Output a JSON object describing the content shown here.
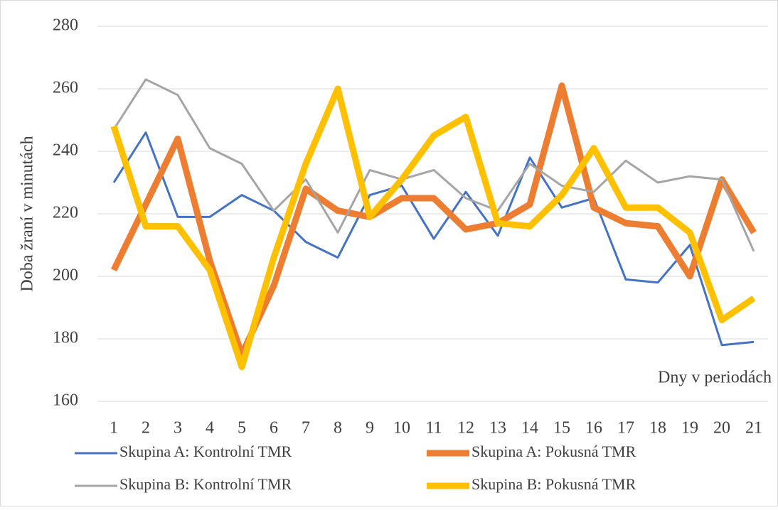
{
  "chart_data": {
    "type": "line",
    "y_label": "Doba žraní v minutách",
    "x_label": "Dny v periodách",
    "categories": [
      "1",
      "2",
      "3",
      "4",
      "5",
      "6",
      "7",
      "8",
      "9",
      "10",
      "11",
      "12",
      "13",
      "14",
      "15",
      "16",
      "17",
      "18",
      "19",
      "20",
      "21"
    ],
    "ylim": [
      160,
      280
    ],
    "yticks": [
      160,
      180,
      200,
      220,
      240,
      260,
      280
    ],
    "grid": true,
    "series": [
      {
        "name": "Skupina A: Kontrolní TMR",
        "color": "#4472c4",
        "values": [
          230,
          246,
          219,
          219,
          226,
          221,
          211,
          206,
          226,
          229,
          212,
          227,
          213,
          238,
          222,
          225,
          199,
          198,
          210,
          178,
          179
        ]
      },
      {
        "name": "Skupina A: Pokusná TMR",
        "color": "#ed7d31",
        "values": [
          202,
          223,
          244,
          205,
          175,
          197,
          228,
          221,
          219,
          225,
          225,
          215,
          217,
          223,
          261,
          222,
          217,
          216,
          200,
          231,
          214
        ]
      },
      {
        "name": "Skupina B: Kontrolní TMR",
        "color": "#a5a5a5",
        "values": [
          247,
          263,
          258,
          241,
          236,
          221,
          231,
          214,
          234,
          231,
          234,
          225,
          221,
          236,
          229,
          227,
          237,
          230,
          232,
          231,
          208
        ]
      },
      {
        "name": "Skupina B: Pokusná TMR",
        "color": "#ffc000",
        "values": [
          248,
          216,
          216,
          202,
          171,
          206,
          236,
          260,
          219,
          231,
          245,
          251,
          217,
          216,
          226,
          241,
          222,
          222,
          214,
          186,
          193
        ]
      }
    ]
  }
}
